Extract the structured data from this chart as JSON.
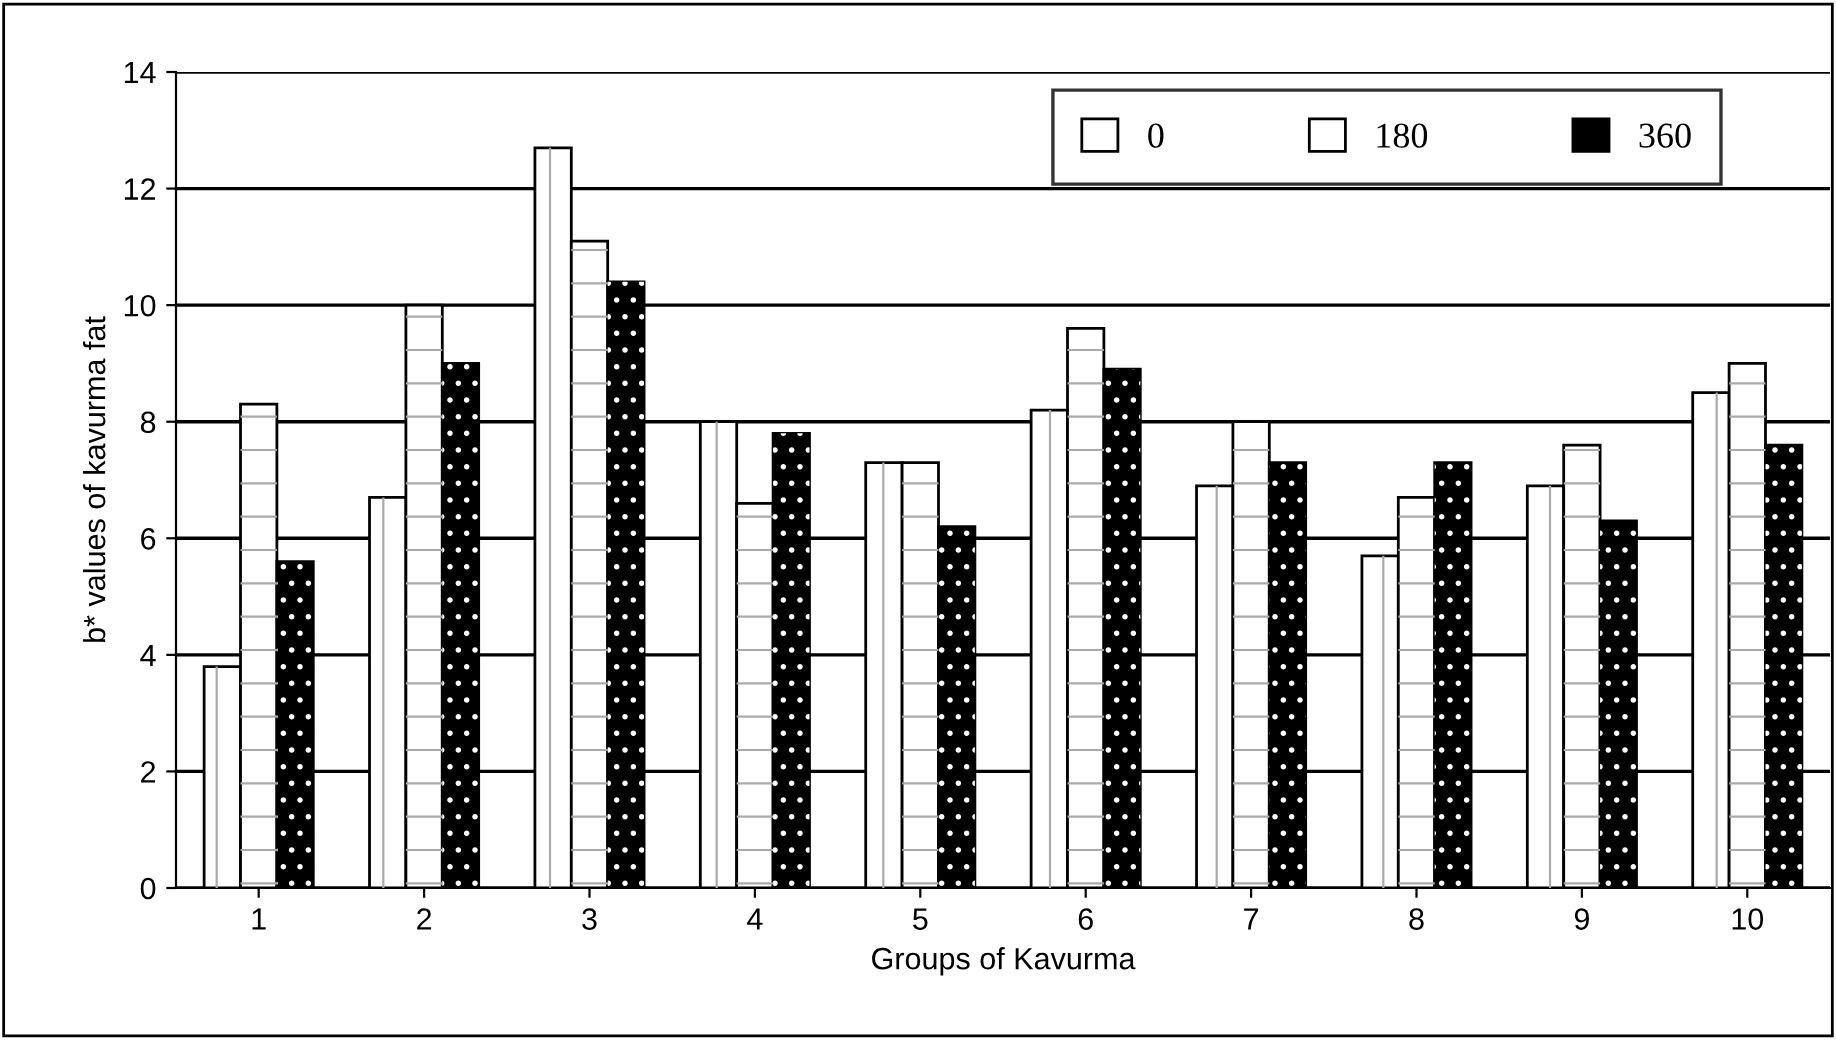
{
  "chart_data": {
    "type": "bar",
    "xlabel": "Groups of Kavurma",
    "ylabel": "b* values of kavurma fat",
    "categories": [
      "1",
      "2",
      "3",
      "4",
      "5",
      "6",
      "7",
      "8",
      "9",
      "10"
    ],
    "series": [
      {
        "name": "0",
        "color": "#ffffff",
        "values": [
          3.8,
          6.7,
          12.7,
          8.0,
          7.3,
          8.2,
          6.9,
          5.7,
          6.9,
          8.5
        ]
      },
      {
        "name": "180",
        "color": "#ffffff",
        "values": [
          8.3,
          10.0,
          11.1,
          6.6,
          7.3,
          9.6,
          8.0,
          6.7,
          7.6,
          9.0
        ]
      },
      {
        "name": "360",
        "color": "#000000",
        "values": [
          5.6,
          9.0,
          10.4,
          7.8,
          6.2,
          8.9,
          7.3,
          7.3,
          6.3,
          7.6
        ]
      }
    ],
    "ylim": [
      0,
      14
    ],
    "yticks": [
      0,
      2,
      4,
      6,
      8,
      10,
      12,
      14
    ],
    "grid": "y",
    "legend": "top right"
  }
}
